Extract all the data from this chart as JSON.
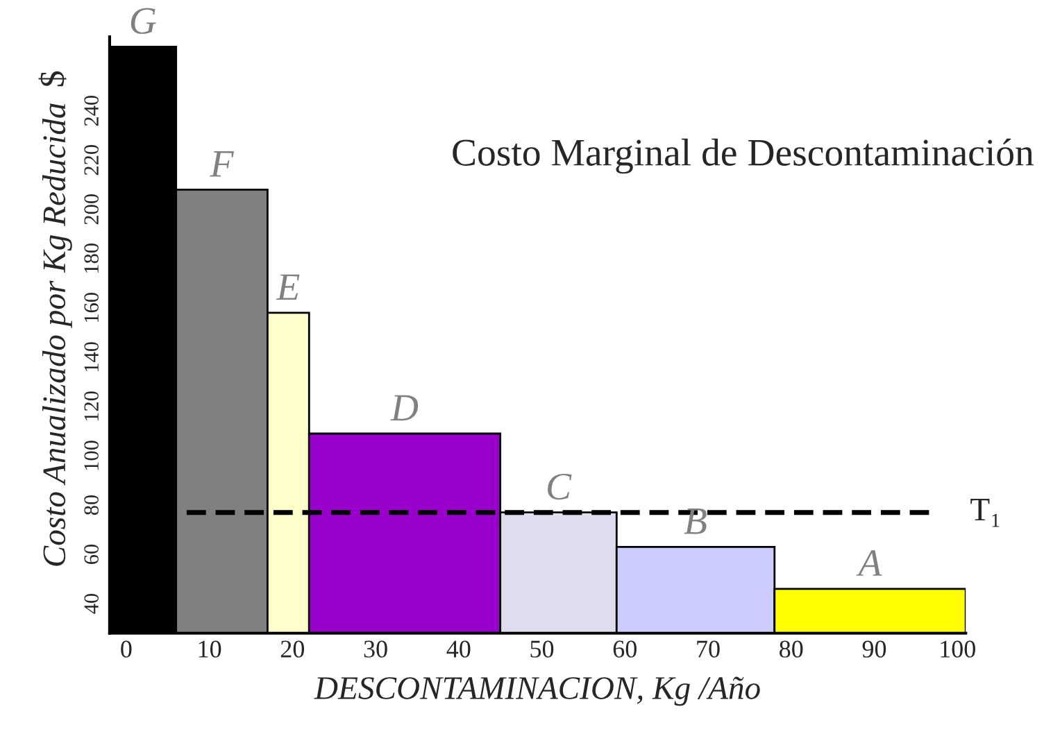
{
  "chart_data": {
    "type": "histogram",
    "bins": [
      -2,
      6,
      17,
      22,
      45,
      59,
      78,
      101
    ],
    "values": [
      266,
      208,
      158,
      109,
      77,
      63,
      46
    ],
    "colors": [
      "#000000",
      "#808080",
      "#ffffcc",
      "#9900cc",
      "#ddddee",
      "#ccccff",
      "#ffff00"
    ],
    "xlabel": "DESCONTAMINACION, Kg /Año",
    "ylabel": "Costo Anualizado por Kg Reducida",
    "xlim": [
      -2,
      101
    ],
    "xticks": [
      0,
      10,
      20,
      30,
      40,
      50,
      60,
      70,
      80,
      90,
      100
    ],
    "ylim": [
      28,
      270
    ],
    "yticks": [
      40,
      60,
      80,
      100,
      120,
      140,
      160,
      180,
      200,
      220,
      240
    ],
    "ref_lines": [
      {
        "axis": "y",
        "value": 77,
        "label": "T₁",
        "color": "#000000",
        "line_style": "dashed"
      }
    ],
    "annotations": [
      "Costo Marginal de Descontaminación",
      "$",
      {
        "text": "G",
        "x": 2,
        "y": 266
      },
      {
        "text": "F",
        "x": 11.5,
        "y": 208
      },
      {
        "text": "E",
        "x": 19.5,
        "y": 158
      },
      {
        "text": "D",
        "x": 33.5,
        "y": 109
      },
      {
        "text": "C",
        "x": 52,
        "y": 77
      },
      {
        "text": "B",
        "x": 68.5,
        "y": 63
      },
      {
        "text": "A",
        "x": 89.5,
        "y": 46
      }
    ],
    "grid": false
  }
}
